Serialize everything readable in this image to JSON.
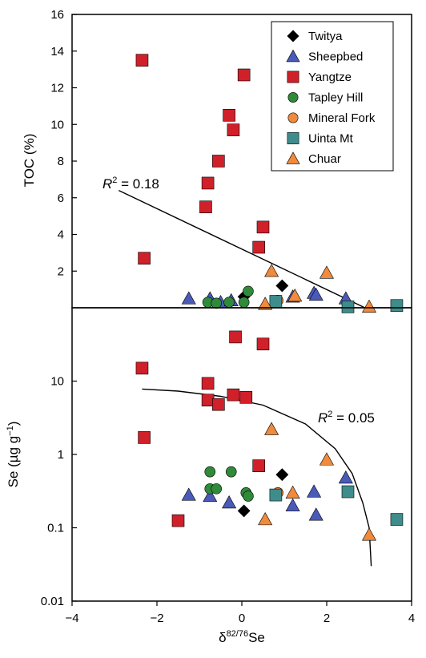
{
  "chart_data": [
    {
      "type": "scatter",
      "panel": "top",
      "ylabel": "TOC (%)",
      "ylim": [
        0,
        16
      ],
      "yticks": [
        "16",
        "14",
        "12",
        "10",
        "8",
        "6",
        "4",
        "2"
      ],
      "yscale": "linear",
      "xlim": [
        -4,
        4
      ],
      "legend_position": "top-right",
      "trendline": {
        "x_range": [
          -2.9,
          2.9
        ],
        "annotation": "R² = 0.18",
        "annotation_prefix": "R",
        "annotation_sup": "2",
        "annotation_suffix": " = 0.18"
      },
      "series": [
        {
          "name": "Twitya",
          "marker": "diamond",
          "color": "#000000",
          "points": [
            [
              0.05,
              0.6
            ],
            [
              0.95,
              1.2
            ]
          ]
        },
        {
          "name": "Sheepbed",
          "marker": "triangle",
          "color": "#4a5ab8",
          "points": [
            [
              -1.25,
              0.5
            ],
            [
              -0.75,
              0.5
            ],
            [
              -0.5,
              0.3
            ],
            [
              -0.25,
              0.4
            ],
            [
              1.2,
              0.6
            ],
            [
              1.7,
              0.8
            ],
            [
              1.75,
              0.7
            ],
            [
              2.45,
              0.5
            ]
          ]
        },
        {
          "name": "Yangtze",
          "marker": "square",
          "color": "#d0202a",
          "points": [
            [
              -2.35,
              13.5
            ],
            [
              -2.3,
              2.7
            ],
            [
              -0.85,
              5.5
            ],
            [
              -0.8,
              6.8
            ],
            [
              -0.55,
              8.0
            ],
            [
              -0.3,
              10.5
            ],
            [
              -0.2,
              9.7
            ],
            [
              0.05,
              12.7
            ],
            [
              0.4,
              3.3
            ],
            [
              0.5,
              4.4
            ]
          ]
        },
        {
          "name": "Tapley Hill",
          "marker": "circle",
          "color": "#2f8a3a",
          "points": [
            [
              -0.8,
              0.3
            ],
            [
              -0.6,
              0.25
            ],
            [
              -0.3,
              0.3
            ],
            [
              0.05,
              0.3
            ],
            [
              0.15,
              0.9
            ]
          ]
        },
        {
          "name": "Mineral Fork",
          "marker": "circle",
          "color": "#f08a3c",
          "points": [
            [
              0.85,
              0.4
            ]
          ]
        },
        {
          "name": "Uinta Mt",
          "marker": "square",
          "color": "#3f8c8c",
          "points": [
            [
              0.8,
              0.35
            ],
            [
              2.5,
              0.05
            ],
            [
              3.65,
              0.12
            ]
          ]
        },
        {
          "name": "Chuar",
          "marker": "triangle",
          "color": "#f08a3c",
          "points": [
            [
              0.55,
              0.2
            ],
            [
              0.7,
              2.0
            ],
            [
              1.25,
              0.65
            ],
            [
              2.0,
              1.9
            ],
            [
              3.0,
              0.05
            ]
          ]
        }
      ]
    },
    {
      "type": "scatter",
      "panel": "bottom",
      "ylabel": "Se (µg g⁻¹)",
      "ylabel_main": "Se (µg g",
      "ylabel_sup": "−1",
      "ylabel_end": ")",
      "yscale": "log",
      "ylim": [
        0.01,
        100
      ],
      "yticks": [
        "10",
        "1",
        "0.1",
        "0.01"
      ],
      "xlabel": "δ82/76Se",
      "xlabel_prefix": "δ",
      "xlabel_sup": "82/76",
      "xlabel_suffix": "Se",
      "xlim": [
        -4,
        4
      ],
      "xticks": [
        "−4",
        "−2",
        "0",
        "2",
        "4"
      ],
      "trendline": {
        "annotation": "R² = 0.05",
        "annotation_prefix": "R",
        "annotation_sup": "2",
        "annotation_suffix": " = 0.05"
      },
      "series": [
        {
          "name": "Twitya",
          "marker": "diamond",
          "color": "#000000",
          "points": [
            [
              0.05,
              0.17
            ],
            [
              0.95,
              0.53
            ]
          ]
        },
        {
          "name": "Sheepbed",
          "marker": "triangle",
          "color": "#4a5ab8",
          "points": [
            [
              -1.25,
              0.28
            ],
            [
              -0.75,
              0.27
            ],
            [
              -0.3,
              0.22
            ],
            [
              1.2,
              0.2
            ],
            [
              1.7,
              0.31
            ],
            [
              1.75,
              0.15
            ],
            [
              2.45,
              0.48
            ]
          ]
        },
        {
          "name": "Yangtze",
          "marker": "square",
          "color": "#d0202a",
          "points": [
            [
              -2.35,
              15
            ],
            [
              -2.3,
              1.7
            ],
            [
              -1.5,
              0.125
            ],
            [
              -0.8,
              9.3
            ],
            [
              -0.8,
              5.5
            ],
            [
              -0.55,
              4.8
            ],
            [
              -0.2,
              6.5
            ],
            [
              -0.15,
              40
            ],
            [
              0.1,
              6.0
            ],
            [
              0.4,
              0.7
            ],
            [
              0.5,
              32
            ]
          ]
        },
        {
          "name": "Tapley Hill",
          "marker": "circle",
          "color": "#2f8a3a",
          "points": [
            [
              -0.75,
              0.58
            ],
            [
              -0.75,
              0.34
            ],
            [
              -0.6,
              0.34
            ],
            [
              -0.25,
              0.58
            ],
            [
              0.1,
              0.3
            ],
            [
              0.15,
              0.27
            ]
          ]
        },
        {
          "name": "Mineral Fork",
          "marker": "circle",
          "color": "#f08a3c",
          "points": [
            [
              0.85,
              0.3
            ]
          ]
        },
        {
          "name": "Uinta Mt",
          "marker": "square",
          "color": "#3f8c8c",
          "points": [
            [
              0.8,
              0.28
            ],
            [
              2.5,
              0.31
            ],
            [
              3.65,
              0.13
            ]
          ]
        },
        {
          "name": "Chuar",
          "marker": "triangle",
          "color": "#f08a3c",
          "points": [
            [
              0.55,
              0.13
            ],
            [
              0.7,
              2.2
            ],
            [
              1.2,
              0.3
            ],
            [
              2.0,
              0.85
            ],
            [
              3.0,
              0.08
            ]
          ]
        }
      ]
    }
  ]
}
